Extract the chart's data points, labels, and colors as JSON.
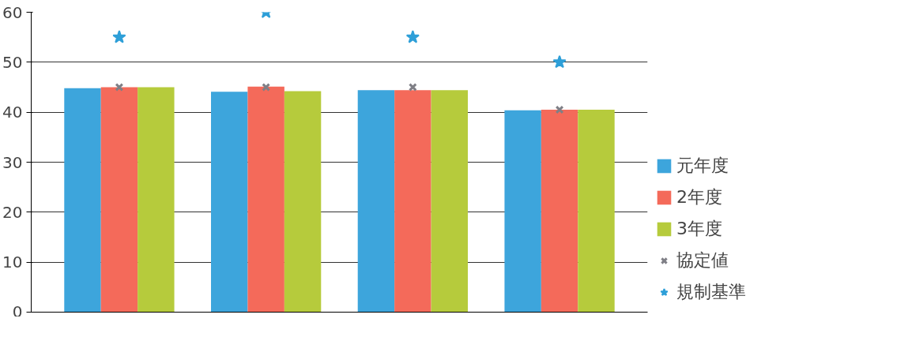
{
  "chart_data": {
    "type": "bar",
    "categories": [
      null,
      null,
      null,
      null
    ],
    "series": [
      {
        "name": "元年度",
        "color": "#3da5dc",
        "values": [
          44.8,
          44.1,
          44.4,
          40.4
        ]
      },
      {
        "name": "2年度",
        "color": "#f46a5a",
        "values": [
          45.0,
          45.1,
          44.4,
          40.5
        ]
      },
      {
        "name": "3年度",
        "color": "#b6cb3c",
        "values": [
          45.0,
          44.2,
          44.4,
          40.5
        ]
      },
      {
        "name": "協定値",
        "type": "scatter",
        "marker": "cross",
        "color": "#7f7f86",
        "values": [
          45,
          45,
          45,
          40.5
        ]
      },
      {
        "name": "規制基準",
        "type": "scatter",
        "marker": "star",
        "color": "#2e9fd8",
        "values": [
          55,
          60,
          55,
          50
        ]
      }
    ],
    "ylim": [
      0,
      60
    ],
    "yticks": [
      0,
      10,
      20,
      30,
      40,
      50,
      60
    ],
    "grid": "y",
    "legend": "right",
    "tick_labels": "y"
  }
}
